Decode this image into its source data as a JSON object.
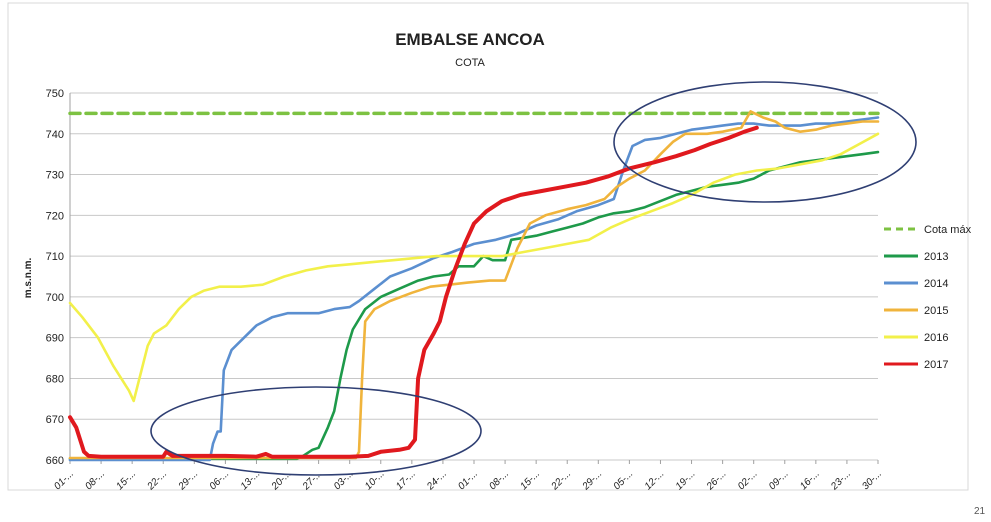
{
  "chart_data": {
    "type": "line",
    "title": "EMBALSE ANCOA",
    "subtitle": "COTA",
    "ylabel": "m.s.n.m.",
    "xlabel": "",
    "ylim": [
      660,
      750
    ],
    "yticks": [
      660,
      670,
      680,
      690,
      700,
      710,
      720,
      730,
      740,
      750
    ],
    "x_tick_labels": [
      "01-...",
      "08-...",
      "15-...",
      "22-...",
      "29-...",
      "06-...",
      "13-...",
      "20-...",
      "27-...",
      "03-...",
      "10-...",
      "17-...",
      "24-...",
      "01-...",
      "08-...",
      "15-...",
      "22-...",
      "29-...",
      "05-...",
      "12-...",
      "19-...",
      "26-...",
      "02-...",
      "09-...",
      "16-...",
      "23-...",
      "30-..."
    ],
    "grid": "horizontal",
    "legend_position": "right",
    "corner_text": "21",
    "series": [
      {
        "name": "Cota máx",
        "color": "#7dc242",
        "dashed": true,
        "points": [
          [
            0,
            745
          ],
          [
            26,
            745
          ]
        ]
      },
      {
        "name": "2013",
        "color": "#1e9a4a",
        "points": [
          [
            0,
            660.3
          ],
          [
            7.3,
            660.3
          ],
          [
            7.5,
            661
          ],
          [
            7.8,
            662.5
          ],
          [
            8.0,
            663
          ],
          [
            8.3,
            668
          ],
          [
            8.5,
            672
          ],
          [
            8.7,
            680
          ],
          [
            8.9,
            687
          ],
          [
            9.1,
            692
          ],
          [
            9.5,
            697
          ],
          [
            10.0,
            700
          ],
          [
            10.6,
            702
          ],
          [
            11.2,
            704
          ],
          [
            11.7,
            705
          ],
          [
            12.2,
            705.5
          ],
          [
            12.5,
            707.5
          ],
          [
            13.0,
            707.5
          ],
          [
            13.3,
            710
          ],
          [
            13.6,
            709
          ],
          [
            14.0,
            709
          ],
          [
            14.2,
            714
          ],
          [
            14.6,
            714.5
          ],
          [
            15.0,
            715
          ],
          [
            15.5,
            716
          ],
          [
            16.0,
            717
          ],
          [
            16.5,
            718
          ],
          [
            17.0,
            719.5
          ],
          [
            17.5,
            720.5
          ],
          [
            18.0,
            721
          ],
          [
            18.5,
            722
          ],
          [
            19.0,
            723.5
          ],
          [
            19.5,
            725
          ],
          [
            20.0,
            726
          ],
          [
            20.5,
            727
          ],
          [
            21.0,
            727.5
          ],
          [
            21.5,
            728
          ],
          [
            22.0,
            729
          ],
          [
            22.5,
            731
          ],
          [
            23.0,
            732
          ],
          [
            23.5,
            733
          ],
          [
            24.0,
            733.5
          ],
          [
            24.5,
            734
          ],
          [
            25.0,
            734.5
          ],
          [
            25.5,
            735
          ],
          [
            26.0,
            735.5
          ]
        ]
      },
      {
        "name": "2014",
        "color": "#5b8fd0",
        "points": [
          [
            0,
            660
          ],
          [
            4.5,
            660
          ],
          [
            4.6,
            664
          ],
          [
            4.75,
            667
          ],
          [
            4.85,
            667
          ],
          [
            4.95,
            682
          ],
          [
            5.2,
            687
          ],
          [
            5.6,
            690
          ],
          [
            6.0,
            693
          ],
          [
            6.5,
            695
          ],
          [
            7.0,
            696
          ],
          [
            7.5,
            696
          ],
          [
            8.0,
            696
          ],
          [
            8.5,
            697
          ],
          [
            9.0,
            697.5
          ],
          [
            9.3,
            699
          ],
          [
            9.8,
            702
          ],
          [
            10.3,
            705
          ],
          [
            11.0,
            707
          ],
          [
            11.7,
            709.5
          ],
          [
            12.3,
            711
          ],
          [
            13.0,
            713
          ],
          [
            13.7,
            714
          ],
          [
            14.4,
            715.5
          ],
          [
            15.0,
            717.5
          ],
          [
            15.7,
            719
          ],
          [
            16.3,
            721
          ],
          [
            17.0,
            722.5
          ],
          [
            17.5,
            724
          ],
          [
            17.8,
            731
          ],
          [
            18.1,
            737
          ],
          [
            18.5,
            738.5
          ],
          [
            19.0,
            739
          ],
          [
            19.5,
            740
          ],
          [
            20.0,
            741
          ],
          [
            20.5,
            741.5
          ],
          [
            21.0,
            742
          ],
          [
            21.5,
            742.5
          ],
          [
            22.0,
            742.5
          ],
          [
            22.5,
            742
          ],
          [
            23.0,
            742
          ],
          [
            23.5,
            742
          ],
          [
            24.0,
            742.5
          ],
          [
            24.5,
            742.5
          ],
          [
            25.0,
            743
          ],
          [
            25.5,
            743.5
          ],
          [
            26.0,
            744
          ]
        ]
      },
      {
        "name": "2015",
        "color": "#f0b43c",
        "points": [
          [
            0,
            660.5
          ],
          [
            9.2,
            660.5
          ],
          [
            9.3,
            662
          ],
          [
            9.4,
            680
          ],
          [
            9.5,
            694
          ],
          [
            9.8,
            697
          ],
          [
            10.3,
            699
          ],
          [
            11.0,
            701
          ],
          [
            11.6,
            702.5
          ],
          [
            12.2,
            703
          ],
          [
            12.8,
            703.5
          ],
          [
            13.5,
            704
          ],
          [
            14.0,
            704
          ],
          [
            14.4,
            712
          ],
          [
            14.8,
            718
          ],
          [
            15.3,
            720
          ],
          [
            16.0,
            721.5
          ],
          [
            16.6,
            722.5
          ],
          [
            17.2,
            724
          ],
          [
            17.6,
            727
          ],
          [
            18.0,
            729
          ],
          [
            18.5,
            731
          ],
          [
            19.0,
            735
          ],
          [
            19.4,
            738
          ],
          [
            19.8,
            740
          ],
          [
            20.5,
            740
          ],
          [
            21.0,
            740.5
          ],
          [
            21.6,
            741.5
          ],
          [
            21.9,
            745.5
          ],
          [
            22.3,
            744
          ],
          [
            22.7,
            743
          ],
          [
            23.0,
            741.5
          ],
          [
            23.5,
            740.5
          ],
          [
            24.0,
            741
          ],
          [
            24.5,
            742
          ],
          [
            25.0,
            742.5
          ],
          [
            25.5,
            743
          ],
          [
            26.0,
            743
          ]
        ]
      },
      {
        "name": "2016",
        "color": "#f2f04a",
        "points": [
          [
            0,
            698.5
          ],
          [
            0.4,
            695
          ],
          [
            0.9,
            690
          ],
          [
            1.4,
            683
          ],
          [
            1.9,
            677
          ],
          [
            2.05,
            674.5
          ],
          [
            2.3,
            682
          ],
          [
            2.5,
            688
          ],
          [
            2.7,
            691
          ],
          [
            3.1,
            693
          ],
          [
            3.5,
            697
          ],
          [
            3.9,
            700
          ],
          [
            4.3,
            701.5
          ],
          [
            4.8,
            702.5
          ],
          [
            5.5,
            702.5
          ],
          [
            6.2,
            703
          ],
          [
            6.9,
            705
          ],
          [
            7.6,
            706.5
          ],
          [
            8.3,
            707.5
          ],
          [
            9.0,
            708
          ],
          [
            9.7,
            708.5
          ],
          [
            10.4,
            709
          ],
          [
            11.1,
            709.5
          ],
          [
            11.8,
            710
          ],
          [
            12.5,
            710
          ],
          [
            13.2,
            710
          ],
          [
            13.9,
            710
          ],
          [
            14.6,
            711
          ],
          [
            15.3,
            712
          ],
          [
            16.0,
            713
          ],
          [
            16.7,
            714
          ],
          [
            17.4,
            717
          ],
          [
            18.0,
            719
          ],
          [
            18.7,
            721
          ],
          [
            19.4,
            723
          ],
          [
            20.0,
            725
          ],
          [
            20.7,
            728
          ],
          [
            21.4,
            730
          ],
          [
            22.1,
            731
          ],
          [
            22.8,
            731.5
          ],
          [
            23.5,
            732.5
          ],
          [
            24.2,
            733.5
          ],
          [
            24.8,
            735
          ],
          [
            25.4,
            737.5
          ],
          [
            26.0,
            740
          ]
        ]
      },
      {
        "name": "2017",
        "color": "#e0191e",
        "points": [
          [
            0,
            670.5
          ],
          [
            0.2,
            668
          ],
          [
            0.45,
            662
          ],
          [
            0.6,
            661
          ],
          [
            1.0,
            660.8
          ],
          [
            3.0,
            660.8
          ],
          [
            3.1,
            662
          ],
          [
            3.3,
            661
          ],
          [
            5.0,
            661
          ],
          [
            6.0,
            660.8
          ],
          [
            6.3,
            661.5
          ],
          [
            6.5,
            660.8
          ],
          [
            9.0,
            660.8
          ],
          [
            9.6,
            661
          ],
          [
            10.0,
            662
          ],
          [
            10.6,
            662.5
          ],
          [
            10.9,
            663
          ],
          [
            11.1,
            665
          ],
          [
            11.2,
            680
          ],
          [
            11.4,
            687
          ],
          [
            11.7,
            691
          ],
          [
            11.9,
            694
          ],
          [
            12.1,
            700
          ],
          [
            12.4,
            707
          ],
          [
            12.7,
            713
          ],
          [
            13.0,
            718
          ],
          [
            13.4,
            721
          ],
          [
            13.9,
            723.5
          ],
          [
            14.5,
            725
          ],
          [
            15.2,
            726
          ],
          [
            15.9,
            727
          ],
          [
            16.6,
            728
          ],
          [
            17.3,
            729.5
          ],
          [
            18.0,
            731.5
          ],
          [
            18.8,
            733
          ],
          [
            19.5,
            734.5
          ],
          [
            20.1,
            736
          ],
          [
            20.6,
            737.5
          ],
          [
            21.2,
            739
          ],
          [
            21.7,
            740.5
          ],
          [
            22.1,
            741.5
          ]
        ]
      }
    ]
  }
}
